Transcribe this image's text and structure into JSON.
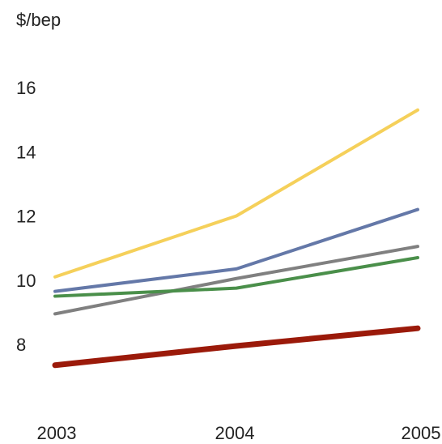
{
  "chart_data": {
    "type": "line",
    "title": "",
    "xlabel": "",
    "ylabel": "$/bep",
    "x": [
      "2003",
      "2004",
      "2005"
    ],
    "yticks": [
      8,
      10,
      12,
      14,
      16
    ],
    "ylim": [
      6,
      17.5
    ],
    "grid": false,
    "legend": "none",
    "series": [
      {
        "color": "#f5d05a",
        "values": [
          10.1,
          12.0,
          15.3
        ]
      },
      {
        "color": "#6478a8",
        "values": [
          9.65,
          10.35,
          12.2
        ]
      },
      {
        "color": "#808080",
        "values": [
          8.95,
          10.05,
          11.05
        ]
      },
      {
        "color": "#4a8f4a",
        "values": [
          9.5,
          9.75,
          10.7
        ]
      },
      {
        "color": "#9b1a0a",
        "values": [
          7.35,
          7.95,
          8.5
        ]
      }
    ]
  }
}
